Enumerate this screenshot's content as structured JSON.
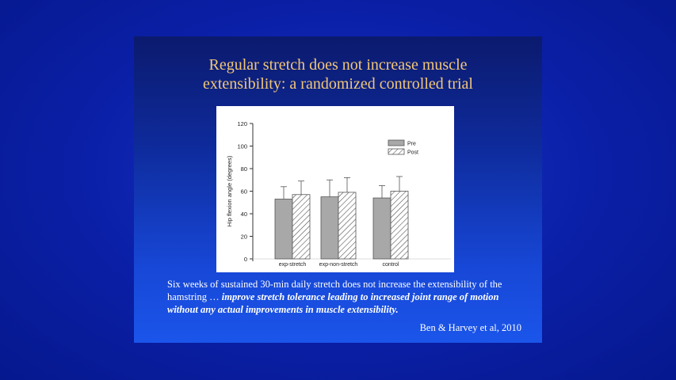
{
  "slide": {
    "title_line1": "Regular stretch does not increase muscle",
    "title_line2": "extensibility: a randomized controlled trial",
    "caption_plain": "Six weeks of sustained 30-min daily stretch does not increase the extensibility of the hamstring … ",
    "caption_emphasis": "improve stretch tolerance leading to increased joint range of motion without any actual improvements in muscle extensibility.",
    "citation": "Ben & Harvey et al, 2010"
  },
  "chart_data": {
    "type": "bar",
    "categories": [
      "exp-stretch",
      "exp-non-stretch",
      "control"
    ],
    "series": [
      {
        "name": "Pre",
        "values": [
          53,
          55,
          54
        ],
        "error": [
          11,
          15,
          11
        ],
        "fill": "#a8a8a8"
      },
      {
        "name": "Post",
        "values": [
          57,
          59,
          60
        ],
        "error": [
          12,
          13,
          13
        ],
        "fill": "hatched"
      }
    ],
    "ylabel": "Hip flexion angle (degrees)",
    "xlabel": "",
    "ylim": [
      0,
      120
    ],
    "yticks": [
      0,
      20,
      40,
      60,
      80,
      100,
      120
    ],
    "legend_position": "top-right",
    "grid": false
  }
}
